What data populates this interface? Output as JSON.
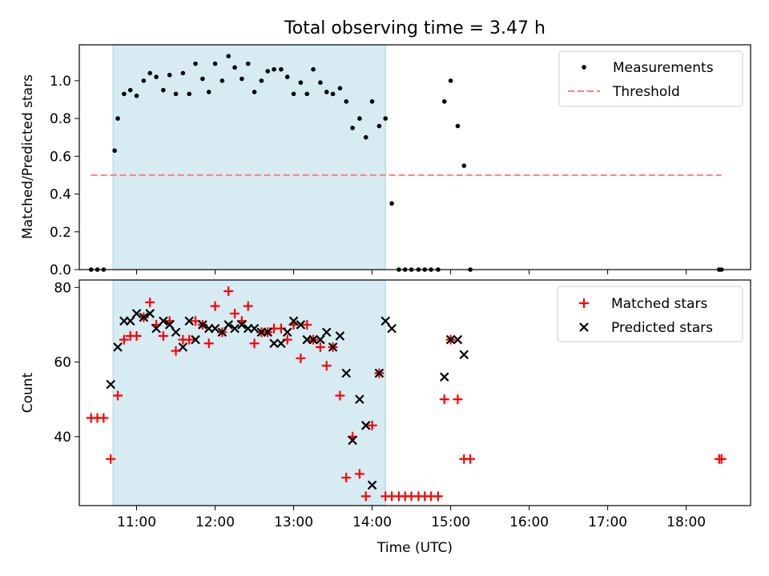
{
  "colors": {
    "measurement": "#000000",
    "threshold": "#ff7f7f",
    "matched": "#ff0000",
    "predicted": "#000000",
    "shade": "#add8e6"
  },
  "chart_data": [
    {
      "type": "scatter",
      "title": "Total observing time = 3.47 h",
      "xlabel": "",
      "ylabel": "Matched/Predicted stars",
      "xlim": [
        10.27,
        18.82
      ],
      "ylim": [
        0.0,
        1.19
      ],
      "yticks": [
        0.0,
        0.2,
        0.4,
        0.6,
        0.8,
        1.0
      ],
      "ytick_labels": [
        "0.0",
        "0.2",
        "0.4",
        "0.6",
        "0.8",
        "1.0"
      ],
      "xticks": [
        11,
        12,
        13,
        14,
        15,
        16,
        17,
        18
      ],
      "shaded_span": [
        10.7,
        14.17
      ],
      "legend_position": "top-right",
      "grid": false,
      "series": [
        {
          "name": "Measurements",
          "marker": "dot",
          "x": [
            10.42,
            10.5,
            10.58,
            10.72,
            10.76,
            10.84,
            10.92,
            11.0,
            11.09,
            11.17,
            11.25,
            11.34,
            11.42,
            11.5,
            11.59,
            11.67,
            11.75,
            11.84,
            11.92,
            12.0,
            12.09,
            12.17,
            12.25,
            12.34,
            12.42,
            12.5,
            12.59,
            12.67,
            12.75,
            12.84,
            12.92,
            13.0,
            13.09,
            13.17,
            13.25,
            13.34,
            13.42,
            13.5,
            13.59,
            13.67,
            13.75,
            13.84,
            13.92,
            14.0,
            14.09,
            14.17,
            14.25,
            14.34,
            14.42,
            14.5,
            14.59,
            14.67,
            14.75,
            14.84,
            14.92,
            15.0,
            15.09,
            15.17,
            15.25,
            18.42,
            18.45
          ],
          "y": [
            0.0,
            0.0,
            0.0,
            0.63,
            0.8,
            0.93,
            0.95,
            0.92,
            1.0,
            1.04,
            1.02,
            0.95,
            1.03,
            0.93,
            1.04,
            0.93,
            1.09,
            1.01,
            0.94,
            1.09,
            1.0,
            1.13,
            1.07,
            1.01,
            1.09,
            0.94,
            1.0,
            1.05,
            1.06,
            1.06,
            1.02,
            0.93,
            0.99,
            0.93,
            1.06,
            0.99,
            0.94,
            0.93,
            0.96,
            0.89,
            0.75,
            0.8,
            0.7,
            0.89,
            0.76,
            0.8,
            0.35,
            0.0,
            0.0,
            0.0,
            0.0,
            0.0,
            0.0,
            0.0,
            0.89,
            1.0,
            0.76,
            0.55,
            0.0,
            0.0,
            0.0
          ]
        },
        {
          "name": "Threshold",
          "marker": "dashed-line",
          "x": [
            10.42,
            18.45
          ],
          "y": [
            0.5,
            0.5
          ]
        }
      ]
    },
    {
      "type": "scatter",
      "title": "",
      "xlabel": "Time (UTC)",
      "ylabel": "Count",
      "xlim": [
        10.27,
        18.82
      ],
      "ylim": [
        21.5,
        82
      ],
      "yticks": [
        40,
        60,
        80
      ],
      "ytick_labels": [
        "40",
        "60",
        "80"
      ],
      "xticks": [
        11,
        12,
        13,
        14,
        15,
        16,
        17,
        18
      ],
      "xtick_labels": [
        "11:00",
        "12:00",
        "13:00",
        "14:00",
        "15:00",
        "16:00",
        "17:00",
        "18:00"
      ],
      "shaded_span": [
        10.7,
        14.17
      ],
      "legend_position": "top-right",
      "grid": false,
      "series": [
        {
          "name": "Matched stars",
          "marker": "plus",
          "x": [
            10.42,
            10.5,
            10.58,
            10.67,
            10.76,
            10.84,
            10.92,
            11.0,
            11.09,
            11.17,
            11.25,
            11.34,
            11.42,
            11.5,
            11.59,
            11.67,
            11.75,
            11.84,
            11.92,
            12.0,
            12.09,
            12.17,
            12.25,
            12.34,
            12.42,
            12.5,
            12.59,
            12.67,
            12.75,
            12.84,
            12.92,
            13.0,
            13.09,
            13.17,
            13.25,
            13.34,
            13.42,
            13.5,
            13.59,
            13.67,
            13.75,
            13.84,
            13.92,
            14.0,
            14.09,
            14.17,
            14.25,
            14.34,
            14.42,
            14.5,
            14.59,
            14.67,
            14.75,
            14.84,
            14.92,
            15.0,
            15.09,
            15.17,
            15.25,
            18.42,
            18.45
          ],
          "y": [
            45,
            45,
            45,
            34,
            51,
            66,
            67,
            67,
            72,
            76,
            70,
            67,
            71,
            63,
            66,
            66,
            71,
            70,
            65,
            75,
            68,
            79,
            73,
            71,
            75,
            65,
            68,
            68,
            69,
            69,
            66,
            70,
            61,
            70,
            66,
            64,
            59,
            64,
            51,
            29,
            40,
            30,
            24,
            43,
            57,
            24,
            24,
            24,
            24,
            24,
            24,
            24,
            24,
            24,
            50,
            66,
            50,
            34,
            34,
            34,
            34
          ]
        },
        {
          "name": "Predicted stars",
          "marker": "x",
          "x": [
            10.67,
            10.76,
            10.84,
            10.92,
            11.0,
            11.09,
            11.17,
            11.25,
            11.34,
            11.42,
            11.5,
            11.59,
            11.67,
            11.75,
            11.84,
            11.92,
            12.0,
            12.09,
            12.17,
            12.25,
            12.34,
            12.42,
            12.5,
            12.59,
            12.67,
            12.75,
            12.84,
            12.92,
            13.0,
            13.09,
            13.17,
            13.25,
            13.34,
            13.42,
            13.5,
            13.59,
            13.67,
            13.75,
            13.84,
            13.92,
            14.0,
            14.09,
            14.17,
            14.25,
            14.92,
            15.0,
            15.09,
            15.17
          ],
          "y": [
            54,
            64,
            71,
            71,
            73,
            72,
            73,
            69,
            71,
            70,
            68,
            64,
            71,
            66,
            70,
            69,
            69,
            68,
            70,
            69,
            70,
            69,
            69,
            68,
            68,
            65,
            65,
            68,
            71,
            70,
            66,
            66,
            66,
            68,
            64,
            67,
            57,
            39,
            50,
            43,
            27,
            57,
            71,
            69,
            56,
            66,
            66,
            62
          ]
        }
      ]
    }
  ]
}
